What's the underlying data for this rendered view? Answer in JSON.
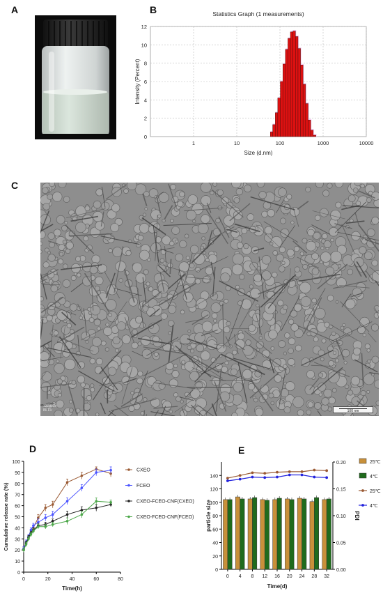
{
  "panels": {
    "a": "A",
    "b": "B",
    "c": "C",
    "d": "D",
    "e": "E"
  },
  "photo": {
    "colors": {
      "background": "#0b0b0b",
      "cap": "#2a2a2a",
      "glass": "#d7dcdc",
      "liquid": "#c9d6cc"
    }
  },
  "tem": {
    "scale_bar": "100 nm",
    "info_line1": "120000x",
    "info_line2": "80 kV"
  },
  "chart_data": [
    {
      "id": "B",
      "type": "bar",
      "title": "Statistics Graph (1 measurements)",
      "xlabel": "Size (d.nm)",
      "ylabel": "Intensity (Percent)",
      "xscale": "log",
      "xlim": [
        0.1,
        10000
      ],
      "ylim": [
        0,
        12
      ],
      "xticks": [
        "1",
        "10",
        "100",
        "1000",
        "10000"
      ],
      "yticks": [
        "0",
        "2",
        "4",
        "6",
        "8",
        "10",
        "12"
      ],
      "grid": true,
      "bar_color": "#dd1111",
      "bins": [
        {
          "x0": 60,
          "x1": 68,
          "y": 0.5
        },
        {
          "x0": 68,
          "x1": 78,
          "y": 1.3
        },
        {
          "x0": 78,
          "x1": 89,
          "y": 2.6
        },
        {
          "x0": 89,
          "x1": 102,
          "y": 4.2
        },
        {
          "x0": 102,
          "x1": 117,
          "y": 6.0
        },
        {
          "x0": 117,
          "x1": 134,
          "y": 7.9
        },
        {
          "x0": 134,
          "x1": 153,
          "y": 9.5
        },
        {
          "x0": 153,
          "x1": 175,
          "y": 10.7
        },
        {
          "x0": 175,
          "x1": 200,
          "y": 11.4
        },
        {
          "x0": 200,
          "x1": 229,
          "y": 11.5
        },
        {
          "x0": 229,
          "x1": 262,
          "y": 10.9
        },
        {
          "x0": 262,
          "x1": 300,
          "y": 9.6
        },
        {
          "x0": 300,
          "x1": 343,
          "y": 7.8
        },
        {
          "x0": 343,
          "x1": 393,
          "y": 5.7
        },
        {
          "x0": 393,
          "x1": 450,
          "y": 3.6
        },
        {
          "x0": 450,
          "x1": 515,
          "y": 1.8
        },
        {
          "x0": 515,
          "x1": 590,
          "y": 0.7
        },
        {
          "x0": 590,
          "x1": 680,
          "y": 0.15
        }
      ]
    },
    {
      "id": "D",
      "type": "line",
      "xlabel": "Time(h)",
      "ylabel": "Cumulative release rate (%)",
      "xlim": [
        0,
        80
      ],
      "ylim": [
        0,
        100
      ],
      "xticks": [
        "0",
        "20",
        "40",
        "60",
        "80"
      ],
      "yticks": [
        "0",
        "10",
        "20",
        "30",
        "40",
        "50",
        "60",
        "70",
        "80",
        "90",
        "100"
      ],
      "x": [
        0,
        2,
        4,
        6,
        8,
        12,
        18,
        24,
        36,
        48,
        60,
        72
      ],
      "series": [
        {
          "name": "CXEO",
          "color": "#9a5a33",
          "values": [
            21,
            27,
            32,
            36,
            40,
            49,
            58,
            61,
            81,
            87,
            93,
            89
          ],
          "err": [
            2,
            2,
            2,
            2,
            2,
            3,
            3,
            3,
            3,
            3,
            2,
            3
          ]
        },
        {
          "name": "FCEO",
          "color": "#4c55ff",
          "values": [
            21,
            27,
            32,
            38,
            42,
            45,
            49,
            52,
            64,
            76,
            90,
            92
          ],
          "err": [
            2,
            2,
            2,
            2,
            2,
            3,
            3,
            3,
            3,
            3,
            3,
            3
          ]
        },
        {
          "name": "CXEO-FCEO-CNF(CXEO)",
          "color": "#222222",
          "values": [
            20,
            26,
            31,
            35,
            38,
            42,
            43,
            46,
            52,
            56,
            58,
            61
          ],
          "err": [
            2,
            2,
            2,
            2,
            2,
            2,
            2,
            2,
            3,
            3,
            3,
            2
          ]
        },
        {
          "name": "CXEO-FCEO-CNF(FCEO)",
          "color": "#4da84a",
          "values": [
            20,
            25,
            30,
            34,
            37,
            41,
            41,
            43,
            46,
            52,
            64,
            63
          ],
          "err": [
            2,
            2,
            2,
            2,
            2,
            2,
            2,
            2,
            3,
            3,
            3,
            2
          ]
        }
      ]
    },
    {
      "id": "E",
      "type": "bar",
      "xlabel": "Time(d)",
      "ylabel": "particle size",
      "y2label": "PDI",
      "categories": [
        "0",
        "4",
        "8",
        "12",
        "16",
        "20",
        "24",
        "28",
        "32"
      ],
      "ylim": [
        0,
        160
      ],
      "y2lim": [
        0,
        0.2
      ],
      "yticks": [
        "0",
        "20",
        "40",
        "60",
        "80",
        "100",
        "120",
        "140"
      ],
      "y2ticks": [
        "0.00",
        "0.05",
        "0.10",
        "0.15",
        "0.20"
      ],
      "bar_series": [
        {
          "name": "25℃",
          "color": "#c8903a",
          "values": [
            104,
            108,
            105,
            104,
            104,
            105,
            106,
            101,
            104
          ]
        },
        {
          "name": "4℃",
          "color": "#1f6b1c",
          "values": [
            104,
            105,
            107,
            103,
            106,
            104,
            105,
            107,
            105
          ]
        }
      ],
      "line_series": [
        {
          "name": "25℃",
          "color": "#9a5a33",
          "values": [
            0.17,
            0.175,
            0.18,
            0.179,
            0.181,
            0.182,
            0.182,
            0.185,
            0.184
          ]
        },
        {
          "name": "4℃",
          "color": "#2222dd",
          "values": [
            0.165,
            0.168,
            0.172,
            0.171,
            0.172,
            0.176,
            0.176,
            0.172,
            0.171
          ]
        }
      ]
    }
  ]
}
